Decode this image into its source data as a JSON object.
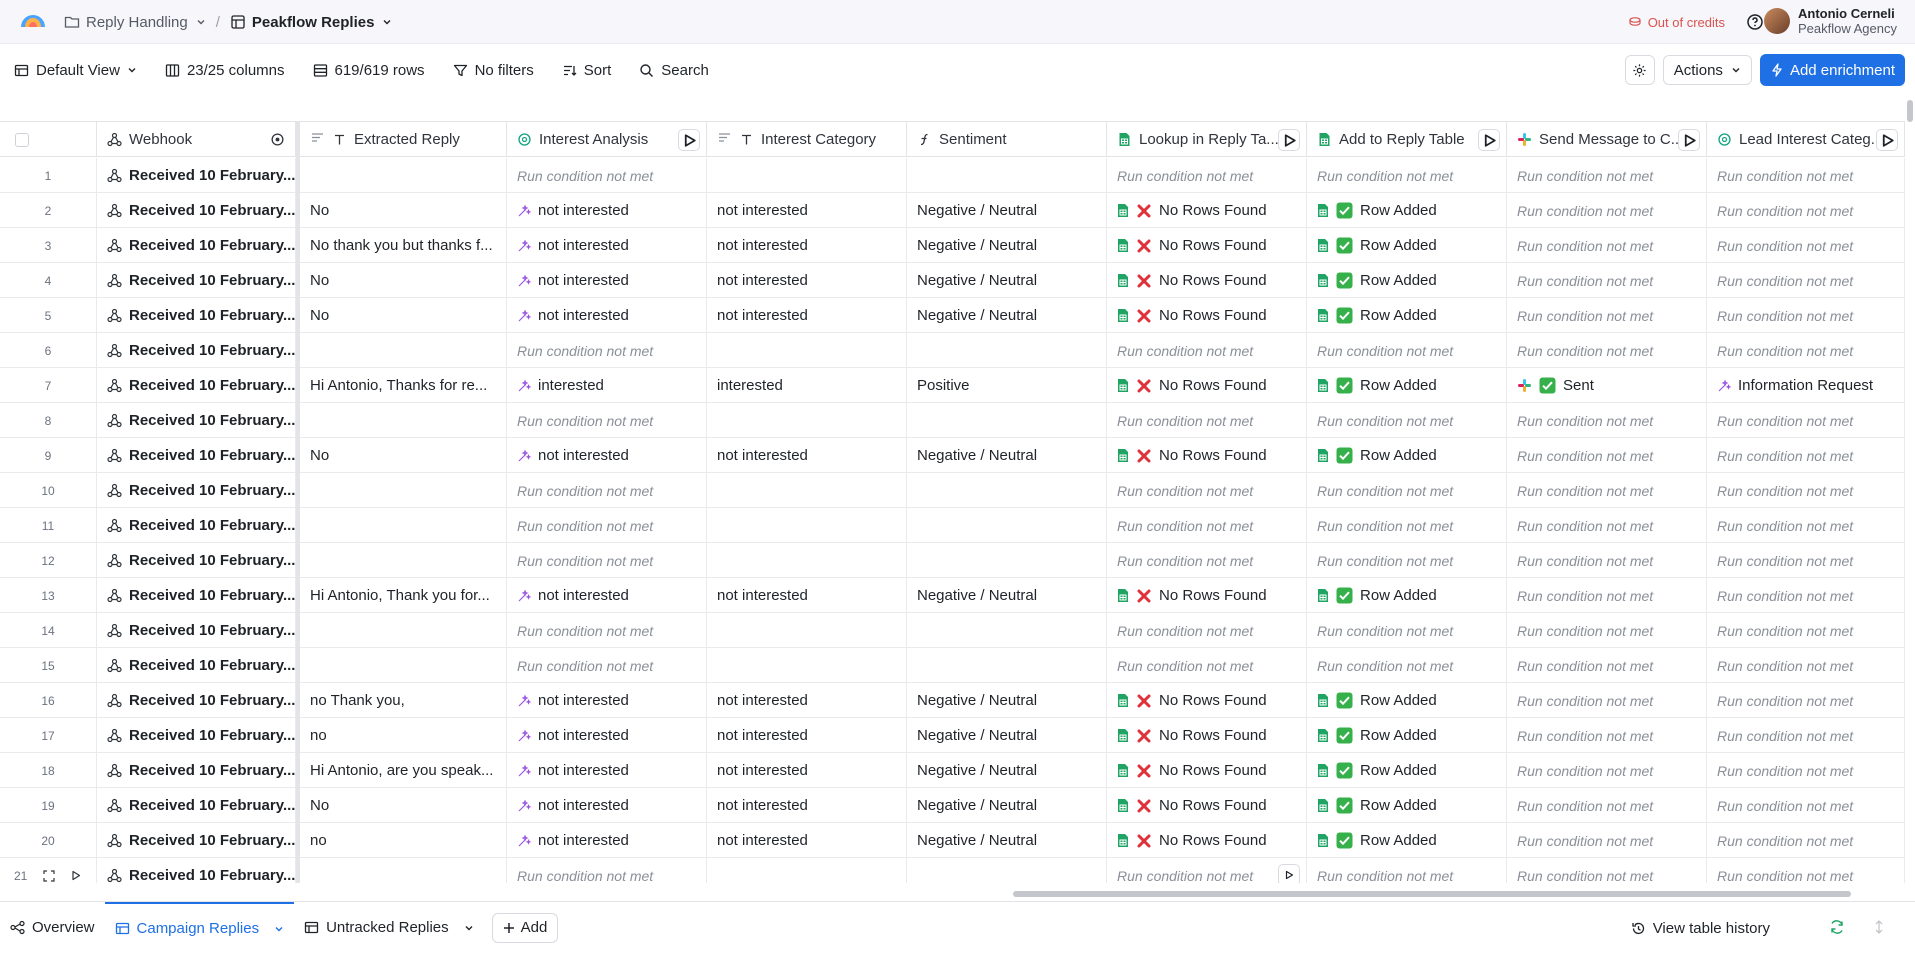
{
  "topbar": {
    "breadcrumb_parent": "Reply Handling",
    "breadcrumb_current": "Peakflow Replies",
    "credits_text": "Out of credits",
    "user_name": "Antonio Cerneli",
    "user_org": "Peakflow Agency"
  },
  "toolbar": {
    "view": "Default View",
    "columns": "23/25 columns",
    "rows": "619/619 rows",
    "filters": "No filters",
    "sort": "Sort",
    "search": "Search",
    "actions": "Actions",
    "add_enrichment": "Add enrichment"
  },
  "columns": [
    {
      "label": "Webhook",
      "icon": "webhook-icon"
    },
    {
      "label": "Extracted Reply",
      "icon": "text-icon"
    },
    {
      "label": "Interest Analysis",
      "icon": "openai-icon"
    },
    {
      "label": "Interest Category",
      "icon": "text-icon"
    },
    {
      "label": "Sentiment",
      "icon": "formula-icon"
    },
    {
      "label": "Lookup in Reply Ta...",
      "icon": "sheets-icon"
    },
    {
      "label": "Add to Reply Table",
      "icon": "sheets-icon"
    },
    {
      "label": "Send Message to C...",
      "icon": "slack-icon"
    },
    {
      "label": "Lead Interest Categ...",
      "icon": "openai-icon"
    }
  ],
  "cell_text": {
    "received": "Received 10 February...",
    "not_met": "Run condition not met",
    "no_rows": "No Rows Found",
    "row_added": "Row Added",
    "sent": "Sent"
  },
  "rows": [
    {
      "n": "1",
      "reply": "",
      "ia": "",
      "cat": "",
      "sent": "",
      "lookup": "",
      "add": "",
      "msg": "",
      "lead": ""
    },
    {
      "n": "2",
      "reply": "No",
      "ia": "not interested",
      "cat": "not interested",
      "sent": "Negative / Neutral",
      "lookup": "x",
      "add": "ok",
      "msg": "",
      "lead": ""
    },
    {
      "n": "3",
      "reply": "No thank you but thanks f...",
      "ia": "not interested",
      "cat": "not interested",
      "sent": "Negative / Neutral",
      "lookup": "x",
      "add": "ok",
      "msg": "",
      "lead": ""
    },
    {
      "n": "4",
      "reply": "No",
      "ia": "not interested",
      "cat": "not interested",
      "sent": "Negative / Neutral",
      "lookup": "x",
      "add": "ok",
      "msg": "",
      "lead": ""
    },
    {
      "n": "5",
      "reply": "No",
      "ia": "not interested",
      "cat": "not interested",
      "sent": "Negative / Neutral",
      "lookup": "x",
      "add": "ok",
      "msg": "",
      "lead": ""
    },
    {
      "n": "6",
      "reply": "",
      "ia": "",
      "cat": "",
      "sent": "",
      "lookup": "",
      "add": "",
      "msg": "",
      "lead": ""
    },
    {
      "n": "7",
      "reply": "Hi Antonio, Thanks for re...",
      "ia": "interested",
      "cat": "interested",
      "sent": "Positive",
      "lookup": "x",
      "add": "ok",
      "msg": "sent",
      "lead": "Information Request"
    },
    {
      "n": "8",
      "reply": "",
      "ia": "",
      "cat": "",
      "sent": "",
      "lookup": "",
      "add": "",
      "msg": "",
      "lead": ""
    },
    {
      "n": "9",
      "reply": "No",
      "ia": "not interested",
      "cat": "not interested",
      "sent": "Negative / Neutral",
      "lookup": "x",
      "add": "ok",
      "msg": "",
      "lead": ""
    },
    {
      "n": "10",
      "reply": "",
      "ia": "",
      "cat": "",
      "sent": "",
      "lookup": "",
      "add": "",
      "msg": "",
      "lead": ""
    },
    {
      "n": "11",
      "reply": "",
      "ia": "",
      "cat": "",
      "sent": "",
      "lookup": "",
      "add": "",
      "msg": "",
      "lead": ""
    },
    {
      "n": "12",
      "reply": "",
      "ia": "",
      "cat": "",
      "sent": "",
      "lookup": "",
      "add": "",
      "msg": "",
      "lead": ""
    },
    {
      "n": "13",
      "reply": "Hi Antonio, Thank you for...",
      "ia": "not interested",
      "cat": "not interested",
      "sent": "Negative / Neutral",
      "lookup": "x",
      "add": "ok",
      "msg": "",
      "lead": ""
    },
    {
      "n": "14",
      "reply": "",
      "ia": "",
      "cat": "",
      "sent": "",
      "lookup": "",
      "add": "",
      "msg": "",
      "lead": ""
    },
    {
      "n": "15",
      "reply": "",
      "ia": "",
      "cat": "",
      "sent": "",
      "lookup": "",
      "add": "",
      "msg": "",
      "lead": ""
    },
    {
      "n": "16",
      "reply": "no Thank you,",
      "ia": "not interested",
      "cat": "not interested",
      "sent": "Negative / Neutral",
      "lookup": "x",
      "add": "ok",
      "msg": "",
      "lead": ""
    },
    {
      "n": "17",
      "reply": "no",
      "ia": "not interested",
      "cat": "not interested",
      "sent": "Negative / Neutral",
      "lookup": "x",
      "add": "ok",
      "msg": "",
      "lead": ""
    },
    {
      "n": "18",
      "reply": "Hi Antonio, are you speak...",
      "ia": "not interested",
      "cat": "not interested",
      "sent": "Negative / Neutral",
      "lookup": "x",
      "add": "ok",
      "msg": "",
      "lead": ""
    },
    {
      "n": "19",
      "reply": "No",
      "ia": "not interested",
      "cat": "not interested",
      "sent": "Negative / Neutral",
      "lookup": "x",
      "add": "ok",
      "msg": "",
      "lead": ""
    },
    {
      "n": "20",
      "reply": "no",
      "ia": "not interested",
      "cat": "not interested",
      "sent": "Negative / Neutral",
      "lookup": "x",
      "add": "ok",
      "msg": "",
      "lead": ""
    },
    {
      "n": "21",
      "reply": "",
      "ia": "",
      "cat": "",
      "sent": "",
      "lookup": "",
      "add": "",
      "msg": "",
      "lead": ""
    }
  ],
  "bottombar": {
    "overview": "Overview",
    "tab_active": "Campaign Replies",
    "tab_other": "Untracked Replies",
    "add": "Add",
    "history": "View table history"
  },
  "colors": {
    "accent": "#1f6fe5",
    "credits": "#d9534f",
    "ai_purple": "#9b51e0",
    "sheets_green": "#1fa463"
  }
}
